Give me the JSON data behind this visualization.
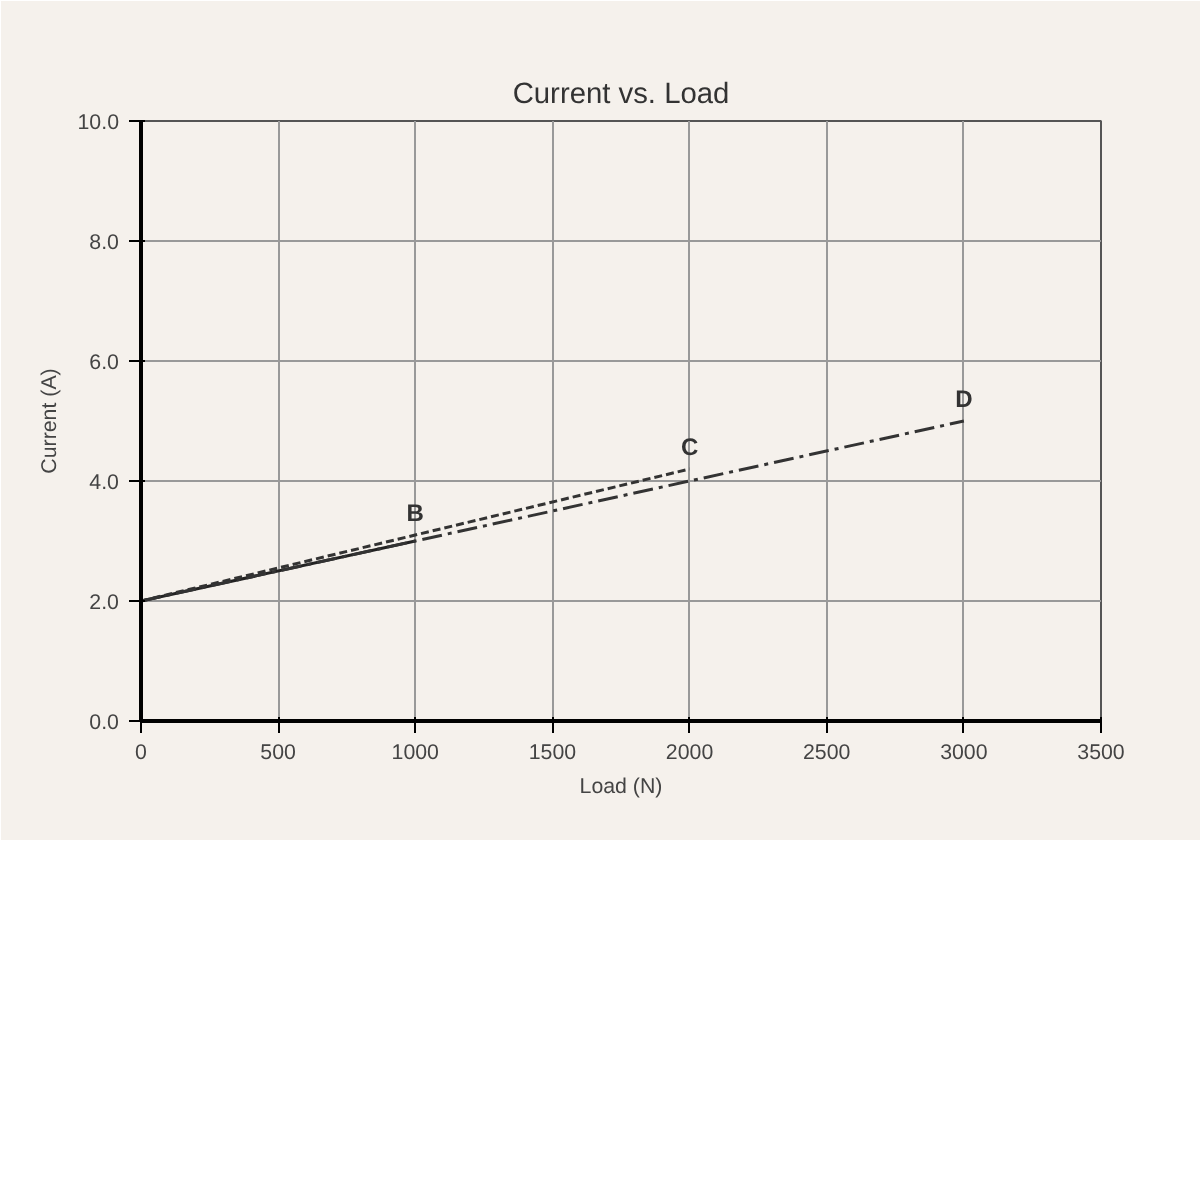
{
  "chart_data": {
    "type": "line",
    "title": "Current vs. Load",
    "xlabel": "Load (N)",
    "ylabel": "Current (A)",
    "xlim": [
      0,
      3500
    ],
    "xticks": [
      0,
      500,
      1000,
      1500,
      2000,
      2500,
      3000,
      3500
    ],
    "ylim": [
      0,
      10
    ],
    "yticks": [
      {
        "value": 0,
        "label": "0.0"
      },
      {
        "value": 2,
        "label": "2.0"
      },
      {
        "value": 4,
        "label": "4.0"
      },
      {
        "value": 6,
        "label": "6.0"
      },
      {
        "value": 8,
        "label": "8.0"
      },
      {
        "value": 10,
        "label": "10.0"
      }
    ],
    "grid": true,
    "marker": "none",
    "series": [
      {
        "color": "#222222",
        "x": [
          0,
          1000
        ],
        "values": [
          2,
          3
        ],
        "line_style": "solid"
      },
      {
        "color": "#333333",
        "x": [
          0,
          2000
        ],
        "values": [
          2,
          4.2
        ],
        "line_style": "dashed"
      },
      {
        "color": "#333333",
        "x": [
          0,
          3000
        ],
        "values": [
          2,
          5
        ],
        "line_style": "dashdot"
      }
    ],
    "annotations": [
      {
        "text": "B",
        "x": 1000,
        "y": 3.1
      },
      {
        "text": "C",
        "x": 2000,
        "y": 4.2
      },
      {
        "text": "D",
        "x": 3000,
        "y": 5
      }
    ]
  }
}
